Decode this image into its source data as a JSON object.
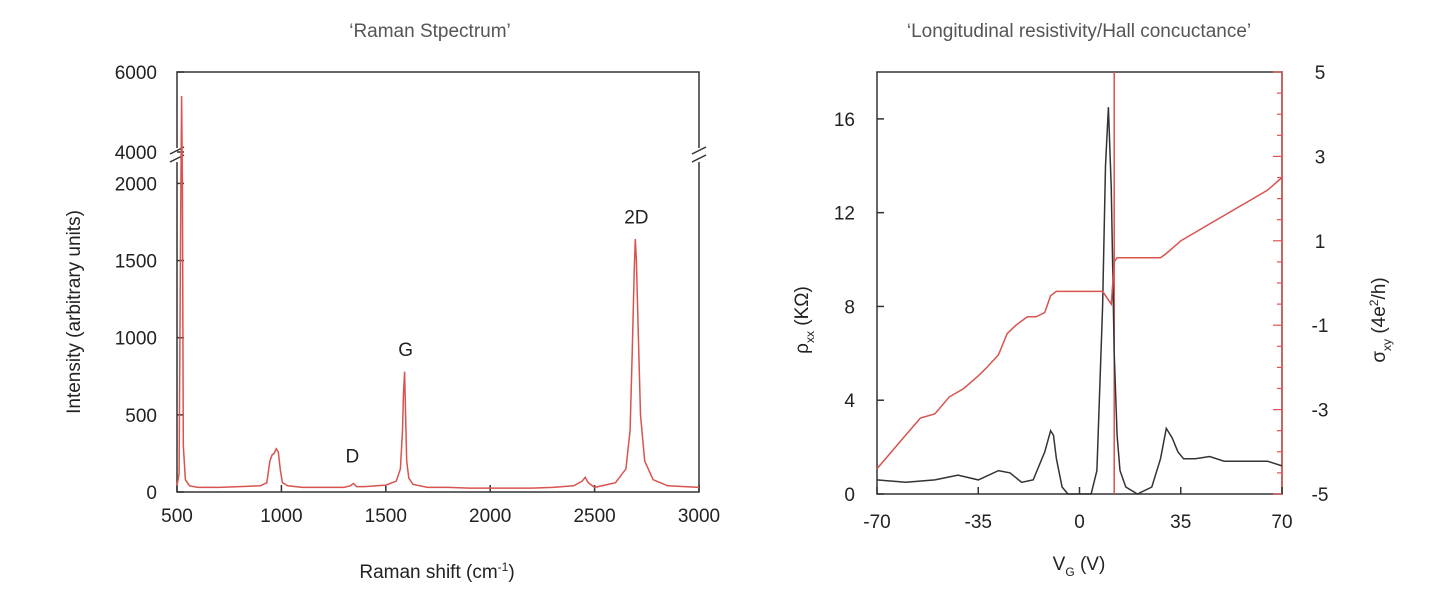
{
  "chart_data": [
    {
      "type": "line",
      "title": "‘Raman Stpectrum’",
      "xlabel": "Raman shift (cm",
      "xlabel_sup": "-1",
      "xlabel_end": ")",
      "ylabel": "Intensity (arbitrary units)",
      "xlim": [
        500,
        3000
      ],
      "ylim_lower": [
        0,
        2100
      ],
      "ylim_upper": [
        4000,
        6000
      ],
      "axis_break": true,
      "x_ticks": [
        "500",
        "1000",
        "1500",
        "2000",
        "2500",
        "3000"
      ],
      "y_ticks_lower": [
        "0",
        "500",
        "1000",
        "1500",
        "2000"
      ],
      "y_ticks_upper": [
        "4000",
        "6000"
      ],
      "series": [
        {
          "color": "#d9534f",
          "x": [
            500,
            510,
            518,
            522,
            526,
            530,
            540,
            560,
            600,
            700,
            800,
            900,
            930,
            945,
            955,
            965,
            975,
            985,
            995,
            1005,
            1030,
            1100,
            1200,
            1300,
            1330,
            1345,
            1360,
            1400,
            1500,
            1550,
            1570,
            1580,
            1585,
            1590,
            1595,
            1600,
            1610,
            1630,
            1700,
            1800,
            1900,
            2000,
            2100,
            2200,
            2300,
            2400,
            2440,
            2455,
            2470,
            2500,
            2600,
            2650,
            2670,
            2680,
            2690,
            2695,
            2700,
            2710,
            2720,
            2740,
            2780,
            2850,
            3000
          ],
          "y": [
            40,
            120,
            1900,
            5400,
            2000,
            300,
            80,
            40,
            30,
            30,
            35,
            40,
            60,
            200,
            240,
            250,
            280,
            260,
            140,
            60,
            40,
            30,
            30,
            30,
            40,
            55,
            35,
            35,
            45,
            70,
            150,
            400,
            640,
            780,
            500,
            200,
            90,
            50,
            30,
            30,
            25,
            25,
            25,
            25,
            30,
            40,
            70,
            95,
            60,
            30,
            60,
            150,
            400,
            900,
            1450,
            1640,
            1500,
            1000,
            500,
            200,
            80,
            40,
            30
          ]
        }
      ],
      "annotations": [
        {
          "text": "D",
          "x": 1340,
          "y": 190
        },
        {
          "text": "G",
          "x": 1595,
          "y": 880
        },
        {
          "text": "2D",
          "x": 2700,
          "y": 1740
        }
      ]
    },
    {
      "type": "line",
      "title": "‘Longitudinal resistivity/Hall concuctance’",
      "xlabel": "V",
      "xlabel_sub": "G",
      "xlabel_end": " (V)",
      "ylabel_left": "ρ",
      "ylabel_left_sub": "xx",
      "ylabel_left_end": " (KΩ)",
      "ylabel_right": "σ",
      "ylabel_right_sub": "xy",
      "ylabel_right_mid": " (4e",
      "ylabel_right_sup": "2",
      "ylabel_right_end": "/h)",
      "xlim": [
        -70,
        70
      ],
      "ylim_left": [
        0,
        18
      ],
      "ylim_right": [
        -5,
        5
      ],
      "x_ticks": [
        "-70",
        "-35",
        "0",
        "35",
        "70"
      ],
      "y_ticks_left": [
        "0",
        "4",
        "8",
        "12",
        "16"
      ],
      "y_ticks_right": [
        "-5",
        "-3",
        "-1",
        "1",
        "3",
        "5"
      ],
      "vertical_line_x": 12,
      "series": [
        {
          "axis": "left",
          "color": "#333333",
          "x": [
            -70,
            -60,
            -50,
            -42,
            -35,
            -28,
            -24,
            -20,
            -16,
            -12,
            -10,
            -9,
            -8,
            -6,
            -4,
            0,
            4,
            6,
            8,
            9,
            10,
            11,
            12,
            13,
            14,
            16,
            20,
            25,
            28,
            30,
            32,
            34,
            36,
            40,
            45,
            50,
            55,
            60,
            65,
            70
          ],
          "y": [
            0.6,
            0.5,
            0.6,
            0.8,
            0.6,
            1.0,
            0.9,
            0.5,
            0.6,
            1.8,
            2.7,
            2.5,
            1.5,
            0.3,
            0.0,
            0.0,
            0.0,
            1.0,
            8.0,
            14.0,
            16.5,
            13.0,
            6.0,
            2.5,
            1.0,
            0.3,
            0.0,
            0.3,
            1.5,
            2.8,
            2.4,
            1.8,
            1.5,
            1.5,
            1.6,
            1.4,
            1.4,
            1.4,
            1.4,
            1.2
          ]
        },
        {
          "axis": "right",
          "color": "#d9534f",
          "x": [
            -70,
            -65,
            -60,
            -55,
            -50,
            -45,
            -40,
            -35,
            -32,
            -28,
            -25,
            -22,
            -20,
            -18,
            -15,
            -12,
            -10,
            -8,
            -6,
            -4,
            0,
            4,
            8,
            10,
            11,
            12,
            13,
            15,
            20,
            25,
            28,
            30,
            35,
            40,
            45,
            50,
            55,
            60,
            65,
            70
          ],
          "y": [
            -4.4,
            -4.0,
            -3.6,
            -3.2,
            -3.1,
            -2.7,
            -2.5,
            -2.2,
            -2.0,
            -1.7,
            -1.2,
            -1.0,
            -0.9,
            -0.8,
            -0.8,
            -0.7,
            -0.3,
            -0.2,
            -0.2,
            -0.2,
            -0.2,
            -0.2,
            -0.2,
            -0.4,
            -0.5,
            0.5,
            0.6,
            0.6,
            0.6,
            0.6,
            0.6,
            0.7,
            1.0,
            1.2,
            1.4,
            1.6,
            1.8,
            2.0,
            2.2,
            2.5
          ]
        }
      ]
    }
  ]
}
